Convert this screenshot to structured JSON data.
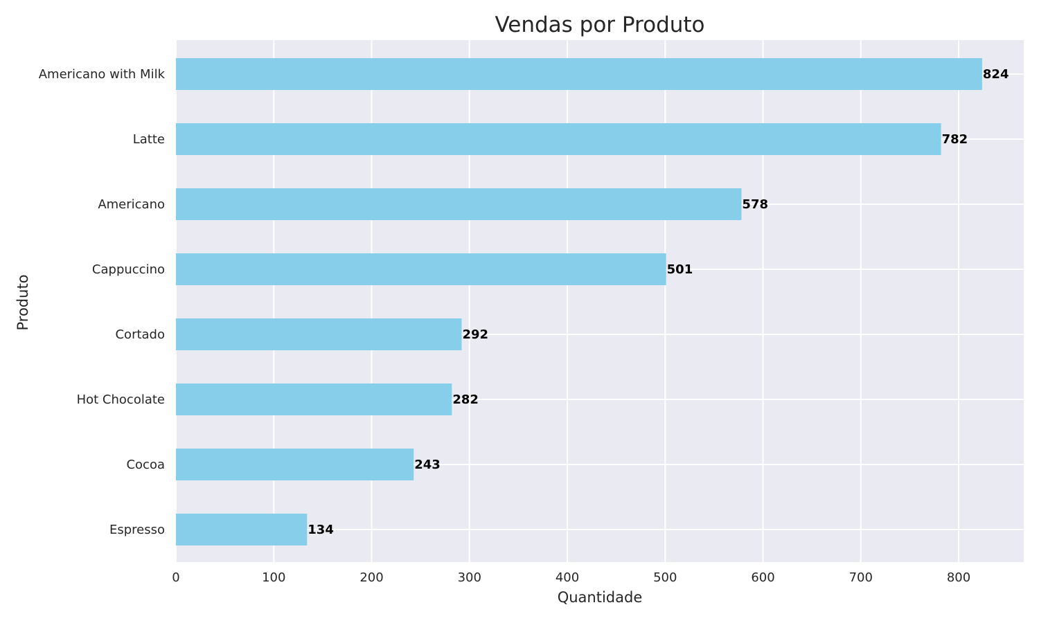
{
  "chart_data": {
    "type": "bar",
    "orientation": "horizontal",
    "title": "Vendas por Produto",
    "xlabel": "Quantidade",
    "ylabel": "Produto",
    "categories": [
      "Americano with Milk",
      "Latte",
      "Americano",
      "Cappuccino",
      "Cortado",
      "Hot Chocolate",
      "Cocoa",
      "Espresso"
    ],
    "values": [
      824,
      782,
      578,
      501,
      292,
      282,
      243,
      134
    ],
    "value_labels": [
      "824",
      "782",
      "578",
      "501",
      "292",
      "282",
      "243",
      "134"
    ],
    "xticks": [
      0,
      100,
      200,
      300,
      400,
      500,
      600,
      700,
      800
    ],
    "xtick_labels": [
      "0",
      "100",
      "200",
      "300",
      "400",
      "500",
      "600",
      "700",
      "800"
    ],
    "xlim": [
      0,
      865
    ],
    "grid": true,
    "colors": {
      "bar": "#87ceeb",
      "plot_background": "#eaeaf2",
      "grid": "#ffffff",
      "text": "#262626",
      "value_label": "#000000"
    }
  }
}
